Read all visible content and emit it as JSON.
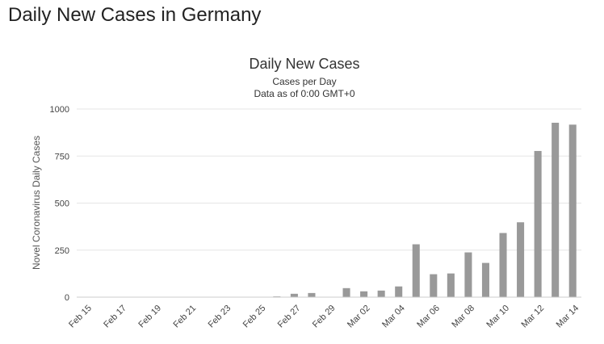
{
  "page": {
    "heading": "Daily New Cases in Germany"
  },
  "chart_data": {
    "type": "bar",
    "title": "Daily New Cases",
    "subtitle": "Cases per Day",
    "subtitle2": "Data as of 0:00 GMT+0",
    "ylabel": "Novel Coronavirus Daily Cases",
    "xlabel": "",
    "ylim": [
      0,
      1000
    ],
    "yticks": [
      0,
      250,
      500,
      750,
      1000
    ],
    "grid": true,
    "categories": [
      "Feb 15",
      "Feb 16",
      "Feb 17",
      "Feb 18",
      "Feb 19",
      "Feb 20",
      "Feb 21",
      "Feb 22",
      "Feb 23",
      "Feb 24",
      "Feb 25",
      "Feb 26",
      "Feb 27",
      "Feb 28",
      "Feb 29",
      "Mar 01",
      "Mar 02",
      "Mar 03",
      "Mar 04",
      "Mar 05",
      "Mar 06",
      "Mar 07",
      "Mar 08",
      "Mar 09",
      "Mar 10",
      "Mar 11",
      "Mar 12",
      "Mar 13",
      "Mar 14"
    ],
    "tick_labels": [
      "Feb 15",
      "Feb 17",
      "Feb 19",
      "Feb 21",
      "Feb 23",
      "Feb 25",
      "Feb 27",
      "Feb 29",
      "Mar 02",
      "Mar 04",
      "Mar 06",
      "Mar 08",
      "Mar 10",
      "Mar 12",
      "Mar 14"
    ],
    "values": [
      0,
      0,
      0,
      0,
      0,
      0,
      0,
      0,
      0,
      0,
      0,
      4,
      18,
      22,
      0,
      48,
      31,
      35,
      57,
      281,
      122,
      126,
      238,
      182,
      341,
      398,
      777,
      927,
      917
    ],
    "colors": {
      "bar": "#999999",
      "grid": "#e6e6e6",
      "axis": "#cccccc",
      "text": "#333333",
      "tick": "#444444"
    }
  }
}
